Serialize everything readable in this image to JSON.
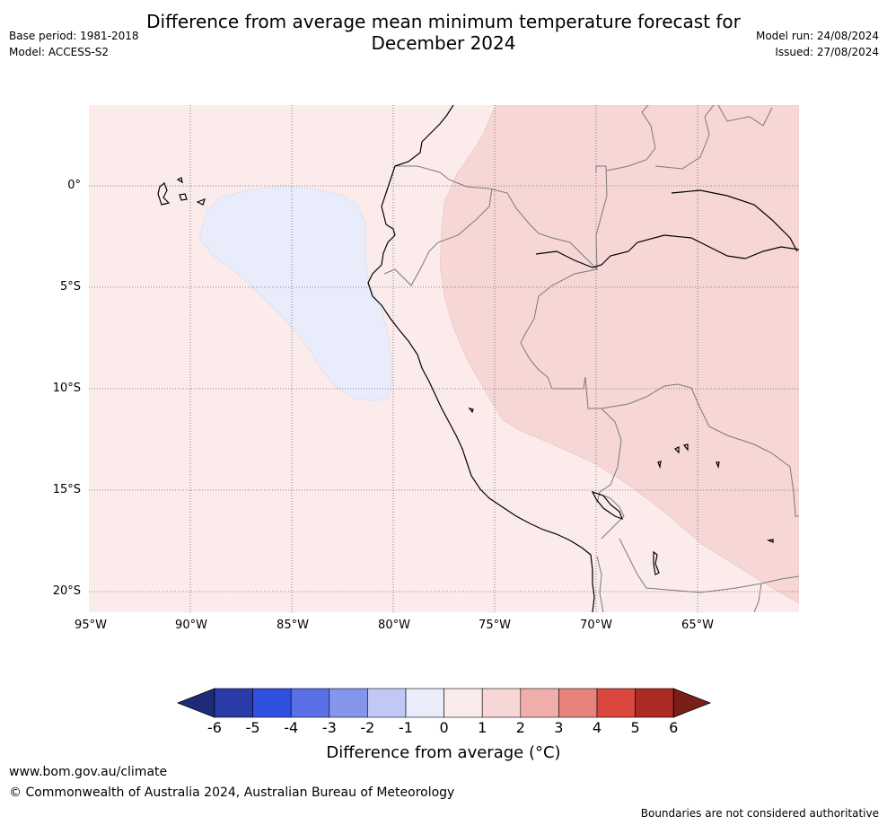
{
  "header": {
    "title_line1": "Difference from average mean minimum temperature forecast for",
    "title_line2": "December 2024",
    "base_period": "Base period: 1981-2018",
    "model": "Model: ACCESS-S2",
    "model_run": "Model run: 24/08/2024",
    "issued": "Issued: 27/08/2024"
  },
  "map": {
    "projection": "plate-carree",
    "lon_range": [
      -95,
      -60
    ],
    "lat_range": [
      -21,
      4
    ],
    "lat_labels": [
      "0°",
      "5°S",
      "10°S",
      "15°S",
      "20°S"
    ],
    "lon_labels": [
      "95°W",
      "90°W",
      "85°W",
      "80°W",
      "75°W",
      "70°W",
      "65°W"
    ],
    "gridlines": "dotted",
    "anomaly_regions": [
      {
        "category": "0 to 1",
        "color": "#fbeceb",
        "coverage": "background"
      },
      {
        "category": "1 to 2",
        "color": "#f6d7d5",
        "coverage": "eastern inland"
      },
      {
        "category": "-1 to 0",
        "color": "#e9ecfb",
        "coverage": "ocean west of Ecuador/Peru"
      }
    ]
  },
  "colorbar": {
    "title": "Difference from average (°C)",
    "tick_labels": [
      "-6",
      "-5",
      "-4",
      "-3",
      "-2",
      "-1",
      "0",
      "1",
      "2",
      "3",
      "4",
      "5",
      "6"
    ],
    "under_color": "#1e2b78",
    "over_color": "#7a1e18",
    "colors": [
      "#2a3aa8",
      "#3050e0",
      "#5a70e6",
      "#8496ec",
      "#c2c8f5",
      "#e9ecfb",
      "#fbeceb",
      "#f6d7d5",
      "#f0aeab",
      "#e8837c",
      "#d9473f",
      "#ad2a23"
    ]
  },
  "footer": {
    "url": "www.bom.gov.au/climate",
    "copyright": "© Commonwealth of Australia 2024, Australian Bureau of Meteorology",
    "disclaimer": "Boundaries are not considered authoritative"
  }
}
